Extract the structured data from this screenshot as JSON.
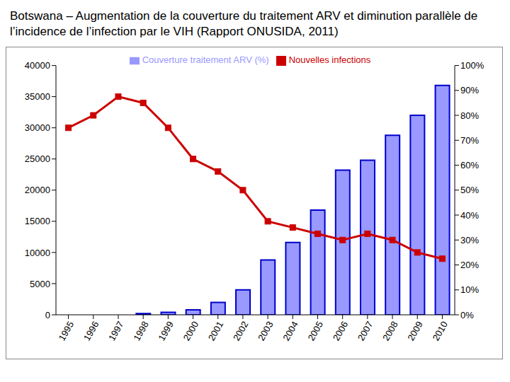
{
  "chart_data": {
    "type": "bar",
    "title": "Botswana – Augmentation de la couverture du traitement ARV et diminution parallèle de l’incidence de l’infection par le VIH (Rapport ONUSIDA, 2011)",
    "categories": [
      "1995",
      "1996",
      "1997",
      "1998",
      "1999",
      "2000",
      "2001",
      "2002",
      "2003",
      "2004",
      "2005",
      "2006",
      "2007",
      "2008",
      "2009",
      "2010"
    ],
    "series": [
      {
        "name": "Couverture traitement ARV (%)",
        "type": "bar",
        "axis": "y2",
        "color": "#9999ff",
        "values": [
          0,
          0,
          0,
          0.5,
          1,
          2,
          5,
          10,
          22,
          29,
          42,
          58,
          62,
          72,
          80,
          92
        ]
      },
      {
        "name": "Nouvelles infections",
        "type": "line",
        "color": "#cc0000",
        "marker": "square",
        "values": [
          30000,
          32000,
          35000,
          34000,
          30000,
          25000,
          23000,
          20000,
          15000,
          14000,
          13000,
          12000,
          13000,
          12000,
          10000,
          9000
        ]
      }
    ],
    "ylim": [
      0,
      40000
    ],
    "yticks": [
      0,
      5000,
      10000,
      15000,
      20000,
      25000,
      30000,
      35000,
      40000
    ],
    "y2lim": [
      0,
      100
    ],
    "y2ticks": [
      {
        "value": 0,
        "label": "0%"
      },
      {
        "value": 10,
        "label": "10%"
      },
      {
        "value": 20,
        "label": "20%"
      },
      {
        "value": 30,
        "label": "30%"
      },
      {
        "value": 40,
        "label": "40%"
      },
      {
        "value": 50,
        "label": "50%"
      },
      {
        "value": 60,
        "label": "60%"
      },
      {
        "value": 70,
        "label": "70%"
      },
      {
        "value": 80,
        "label": "80%"
      },
      {
        "value": 90,
        "label": "90%"
      },
      {
        "value": 100,
        "label": "100%"
      }
    ],
    "grid": false,
    "legend": "top"
  }
}
